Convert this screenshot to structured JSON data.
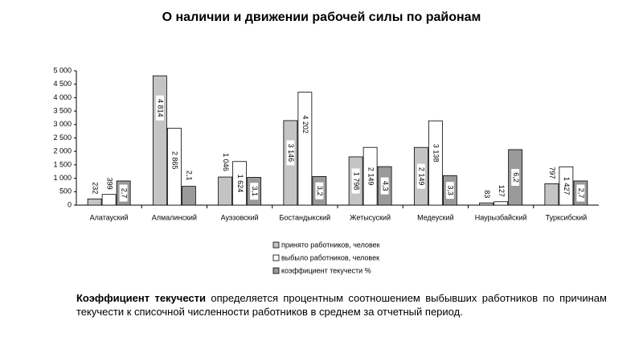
{
  "chart_data": {
    "type": "bar",
    "title": "О наличии и движении рабочей силы по районам",
    "categories": [
      "Алатауский",
      "Алмалинский",
      "Ауэзовский",
      "Бостандыкский",
      "Жетысуский",
      "Медеуский",
      "Наурызбайский",
      "Турксибский"
    ],
    "series": [
      {
        "name": "принято работников, человек",
        "color": "#c4c4c4",
        "values": [
          232,
          4814,
          1046,
          3146,
          1798,
          2149,
          83,
          797
        ],
        "value_labels": [
          "232",
          "4 814",
          "1 046",
          "3 146",
          "1 798",
          "2 149",
          "83",
          "797"
        ]
      },
      {
        "name": "выбыло работников, человек",
        "color": "#ffffff",
        "values": [
          399,
          2865,
          1624,
          4202,
          2149,
          3138,
          127,
          1427
        ],
        "value_labels": [
          "399",
          "2 865",
          "1 624",
          "4 202",
          "2 149",
          "3 138",
          "127",
          "1 427"
        ]
      },
      {
        "name": "коэффициент текучести %",
        "color": "#9a9a9a",
        "axis": "y2",
        "values": [
          2.7,
          2.1,
          3.1,
          3.2,
          4.3,
          3.3,
          6.2,
          2.7
        ],
        "value_labels": [
          "2,7",
          "2,1",
          "3,1",
          "3,2",
          "4,3",
          "3,3",
          "6,2",
          "2,7"
        ]
      }
    ],
    "ylim": [
      0,
      5000
    ],
    "yticks": [
      0,
      500,
      {
        "value": 1000,
        "label": "1 000"
      },
      {
        "value": 1500,
        "label": "1 500"
      },
      {
        "value": 2000,
        "label": "2 000"
      },
      {
        "value": 2500,
        "label": "2 500"
      },
      {
        "value": 3000,
        "label": "3 000"
      },
      {
        "value": 3500,
        "label": "3 500"
      },
      {
        "value": 4000,
        "label": "4 000"
      },
      {
        "value": 4500,
        "label": "4 500"
      },
      {
        "value": 5000,
        "label": "5 000"
      }
    ],
    "y2lim": [
      0,
      15
    ],
    "grid": false
  },
  "paragraph": {
    "term": "Коэффициент текучести",
    "text": "определяется процентным соотношением выбывших работников по причинам текучести к списочной численности работников в среднем за отчетный период."
  }
}
